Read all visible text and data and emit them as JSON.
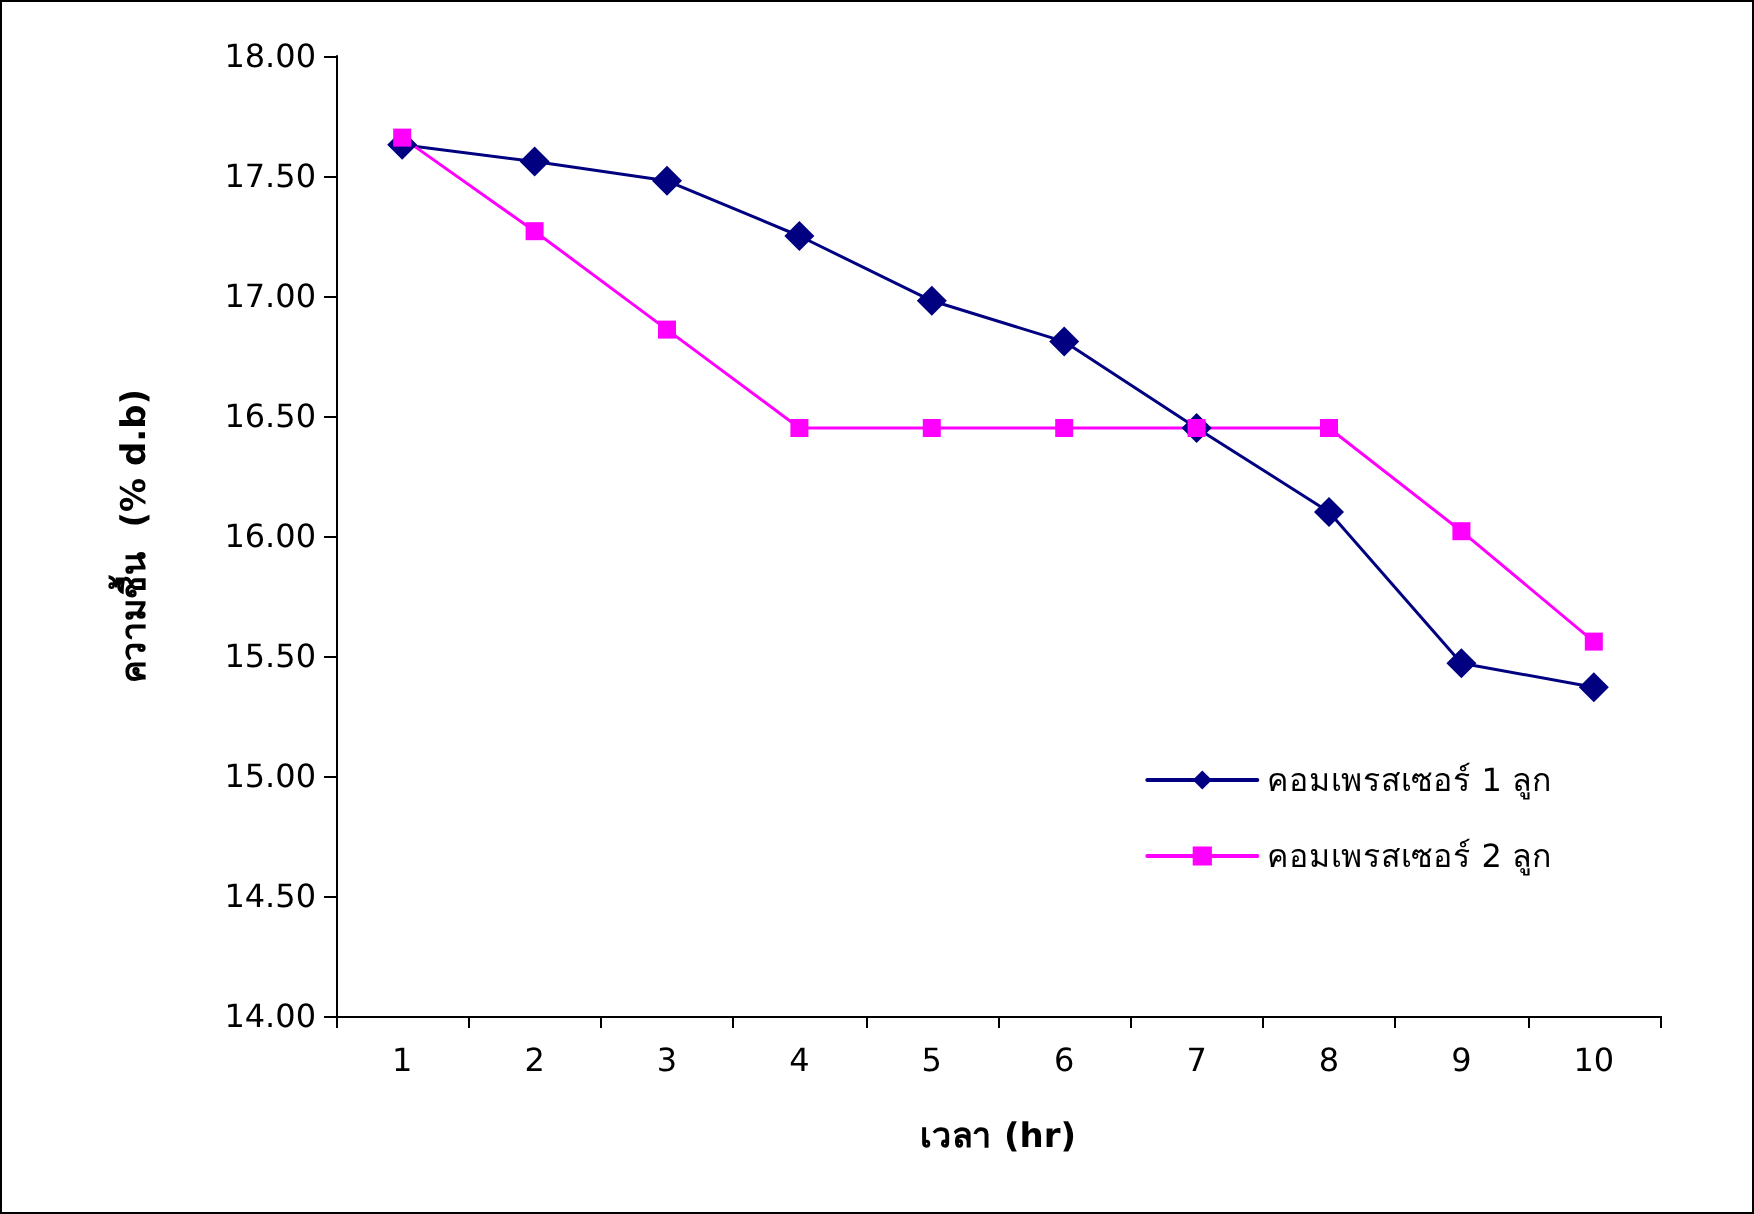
{
  "chart_data": {
    "type": "line",
    "xlabel": "เวลา (hr)",
    "ylabel": "ความชื้น  (% d.b)",
    "categories": [
      "1",
      "2",
      "3",
      "4",
      "5",
      "6",
      "7",
      "8",
      "9",
      "10"
    ],
    "series": [
      {
        "name": "คอมเพรสเซอร์ 1 ลูก",
        "color": "#000080",
        "marker": "diamond",
        "values": [
          17.63,
          17.56,
          17.48,
          17.25,
          16.98,
          16.81,
          16.45,
          16.1,
          15.47,
          15.37
        ]
      },
      {
        "name": "คอมเพรสเซอร์ 2 ลูก",
        "color": "#ff00ff",
        "marker": "square",
        "values": [
          17.66,
          17.27,
          16.86,
          16.45,
          16.45,
          16.45,
          16.45,
          16.45,
          16.02,
          15.56
        ]
      }
    ],
    "ylim": [
      14,
      18
    ],
    "yticks": [
      {
        "value": 14,
        "label": "14.00"
      },
      {
        "value": 14.5,
        "label": "14.50"
      },
      {
        "value": 15,
        "label": "15.00"
      },
      {
        "value": 15.5,
        "label": "15.50"
      },
      {
        "value": 16,
        "label": "16.00"
      },
      {
        "value": 16.5,
        "label": "16.50"
      },
      {
        "value": 17,
        "label": "17.00"
      },
      {
        "value": 17.5,
        "label": "17.50"
      },
      {
        "value": 18,
        "label": "18.00"
      }
    ],
    "grid": false,
    "legend": "bottom right",
    "line_style": "solid"
  }
}
